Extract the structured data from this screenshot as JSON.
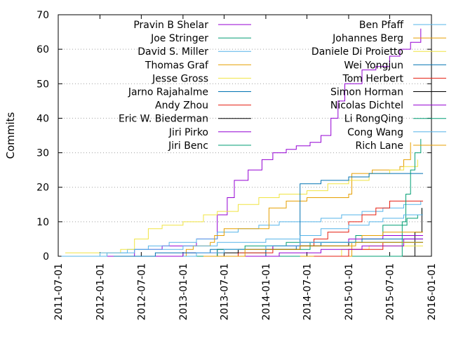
{
  "chart_data": {
    "type": "line",
    "title": "",
    "xlabel": "",
    "ylabel": "Commits",
    "xlim": [
      "2011-07-01",
      "2016-01-01"
    ],
    "ylim": [
      0,
      70
    ],
    "y_ticks": [
      0,
      10,
      20,
      30,
      40,
      50,
      60,
      70
    ],
    "x_ticks": [
      "2011-07-01",
      "2012-01-01",
      "2012-07-01",
      "2013-01-01",
      "2013-07-01",
      "2014-01-01",
      "2014-07-01",
      "2015-01-01",
      "2015-07-01",
      "2016-01-01"
    ],
    "grid": "horizontal dotted",
    "legend_placement": "top, two columns",
    "series": [
      {
        "name": "Pravin B Shelar",
        "color": "#9400d3",
        "points": [
          [
            "2012-01-15",
            0
          ],
          [
            "2012-06-01",
            2
          ],
          [
            "2012-10-01",
            3
          ],
          [
            "2013-03-01",
            5
          ],
          [
            "2013-06-01",
            12
          ],
          [
            "2013-07-15",
            17
          ],
          [
            "2013-08-15",
            22
          ],
          [
            "2013-10-15",
            25
          ],
          [
            "2013-12-15",
            28
          ],
          [
            "2014-02-01",
            30
          ],
          [
            "2014-04-01",
            31
          ],
          [
            "2014-05-15",
            32
          ],
          [
            "2014-07-15",
            33
          ],
          [
            "2014-09-01",
            35
          ],
          [
            "2014-10-15",
            40
          ],
          [
            "2014-11-15",
            45
          ],
          [
            "2014-12-15",
            50
          ],
          [
            "2015-03-01",
            54
          ],
          [
            "2015-05-01",
            55
          ],
          [
            "2015-07-01",
            58
          ],
          [
            "2015-08-15",
            60
          ],
          [
            "2015-10-01",
            62
          ],
          [
            "2015-11-15",
            66
          ]
        ]
      },
      {
        "name": "Joe Stringer",
        "color": "#009e73",
        "points": [
          [
            "2013-05-01",
            0
          ],
          [
            "2013-09-01",
            1
          ],
          [
            "2014-01-01",
            2
          ],
          [
            "2014-07-15",
            4
          ],
          [
            "2015-02-01",
            6
          ],
          [
            "2015-06-01",
            9
          ],
          [
            "2015-09-15",
            11
          ],
          [
            "2015-11-01",
            12
          ],
          [
            "2015-11-20",
            14
          ]
        ]
      },
      {
        "name": "David S. Miller",
        "color": "#56b4e9",
        "points": [
          [
            "2012-01-01",
            0
          ],
          [
            "2012-02-01",
            1
          ],
          [
            "2012-05-01",
            2
          ],
          [
            "2012-08-01",
            3
          ],
          [
            "2012-11-01",
            4
          ],
          [
            "2013-03-01",
            5
          ],
          [
            "2013-06-01",
            7
          ],
          [
            "2013-09-01",
            8
          ],
          [
            "2013-12-01",
            9
          ],
          [
            "2014-03-01",
            10
          ],
          [
            "2014-06-01",
            10
          ],
          [
            "2014-09-01",
            11
          ],
          [
            "2014-12-01",
            12
          ],
          [
            "2015-03-01",
            13
          ],
          [
            "2015-06-01",
            14
          ],
          [
            "2015-09-01",
            15
          ],
          [
            "2015-11-15",
            16
          ]
        ]
      },
      {
        "name": "Thomas Graf",
        "color": "#e69f00",
        "points": [
          [
            "2012-10-01",
            0
          ],
          [
            "2013-01-15",
            2
          ],
          [
            "2013-02-15",
            3
          ],
          [
            "2013-05-01",
            4
          ],
          [
            "2013-05-20",
            6
          ],
          [
            "2013-07-01",
            8
          ],
          [
            "2013-12-15",
            8
          ],
          [
            "2014-01-15",
            14
          ],
          [
            "2014-04-01",
            16
          ],
          [
            "2014-07-01",
            17
          ],
          [
            "2014-10-01",
            17
          ],
          [
            "2015-01-01",
            18
          ],
          [
            "2015-01-15",
            24
          ],
          [
            "2015-04-15",
            25
          ],
          [
            "2015-08-15",
            26
          ],
          [
            "2015-09-01",
            28
          ],
          [
            "2015-10-01",
            33
          ]
        ]
      },
      {
        "name": "Jesse Gross",
        "color": "#f0e442",
        "points": [
          [
            "2011-08-01",
            1
          ],
          [
            "2012-04-01",
            2
          ],
          [
            "2012-06-01",
            5
          ],
          [
            "2012-08-01",
            8
          ],
          [
            "2012-10-01",
            9
          ],
          [
            "2013-01-01",
            10
          ],
          [
            "2013-04-01",
            12
          ],
          [
            "2013-06-01",
            13
          ],
          [
            "2013-09-01",
            15
          ],
          [
            "2013-12-01",
            17
          ],
          [
            "2014-03-01",
            18
          ],
          [
            "2014-07-01",
            19
          ],
          [
            "2014-10-01",
            21
          ],
          [
            "2015-01-01",
            22
          ],
          [
            "2015-04-01",
            24
          ],
          [
            "2015-07-01",
            25
          ],
          [
            "2015-09-01",
            26
          ],
          [
            "2015-11-01",
            28
          ]
        ]
      },
      {
        "name": "Jarno Rajahalme",
        "color": "#0072b2",
        "points": [
          [
            "2013-09-01",
            0
          ],
          [
            "2014-01-01",
            2
          ],
          [
            "2014-05-15",
            3
          ],
          [
            "2014-06-01",
            21
          ],
          [
            "2014-09-01",
            22
          ],
          [
            "2015-01-01",
            23
          ],
          [
            "2015-04-01",
            24
          ],
          [
            "2015-11-25",
            24
          ]
        ]
      },
      {
        "name": "Andy Zhou",
        "color": "#e51e10",
        "points": [
          [
            "2013-06-01",
            0
          ],
          [
            "2013-09-01",
            1
          ],
          [
            "2014-02-01",
            3
          ],
          [
            "2014-08-01",
            5
          ],
          [
            "2014-10-01",
            7
          ],
          [
            "2015-01-01",
            10
          ],
          [
            "2015-03-01",
            12
          ],
          [
            "2015-05-01",
            14
          ],
          [
            "2015-07-01",
            16
          ],
          [
            "2015-11-25",
            16
          ]
        ]
      },
      {
        "name": "Eric W. Biederman",
        "color": "#000000",
        "points": [
          [
            "2013-09-01",
            0
          ],
          [
            "2015-10-15",
            0
          ],
          [
            "2015-10-20",
            7
          ],
          [
            "2015-11-20",
            14
          ]
        ]
      },
      {
        "name": "Jiri Pirko",
        "color": "#9400d3",
        "points": [
          [
            "2012-05-01",
            0
          ],
          [
            "2013-01-01",
            1
          ],
          [
            "2013-06-01",
            2
          ],
          [
            "2014-02-01",
            3
          ],
          [
            "2014-06-01",
            4
          ],
          [
            "2015-01-01",
            5
          ],
          [
            "2015-06-01",
            6
          ],
          [
            "2015-11-25",
            6
          ]
        ]
      },
      {
        "name": "Jiri Benc",
        "color": "#009e73",
        "points": [
          [
            "2013-12-01",
            0
          ],
          [
            "2015-08-15",
            0
          ],
          [
            "2015-08-25",
            10
          ],
          [
            "2015-09-10",
            18
          ],
          [
            "2015-10-01",
            25
          ],
          [
            "2015-10-20",
            30
          ],
          [
            "2015-11-15",
            34
          ]
        ]
      },
      {
        "name": "Ben Pfaff",
        "color": "#56b4e9",
        "points": [
          [
            "2011-07-15",
            0
          ],
          [
            "2012-01-01",
            1
          ],
          [
            "2012-06-01",
            2
          ],
          [
            "2013-01-01",
            3
          ],
          [
            "2013-06-01",
            4
          ],
          [
            "2014-01-01",
            5
          ],
          [
            "2014-06-01",
            6
          ],
          [
            "2014-09-01",
            8
          ],
          [
            "2015-01-01",
            9
          ],
          [
            "2015-04-01",
            10
          ],
          [
            "2015-06-01",
            11
          ],
          [
            "2015-09-01",
            12
          ],
          [
            "2015-11-25",
            12
          ]
        ]
      },
      {
        "name": "Johannes Berg",
        "color": "#e69f00",
        "points": [
          [
            "2014-06-01",
            0
          ],
          [
            "2015-01-15",
            4
          ],
          [
            "2015-03-01",
            6
          ],
          [
            "2015-06-01",
            7
          ],
          [
            "2015-11-25",
            7
          ]
        ]
      },
      {
        "name": "Daniele Di Proietto",
        "color": "#f0e442",
        "points": [
          [
            "2014-08-01",
            0
          ],
          [
            "2014-12-01",
            2
          ],
          [
            "2015-04-01",
            3
          ],
          [
            "2015-11-25",
            3
          ]
        ]
      },
      {
        "name": "Wei Yongjun",
        "color": "#0072b2",
        "points": [
          [
            "2012-03-01",
            0
          ],
          [
            "2012-09-01",
            1
          ],
          [
            "2013-05-01",
            2
          ],
          [
            "2014-01-01",
            3
          ],
          [
            "2014-09-01",
            4
          ],
          [
            "2015-03-01",
            5
          ],
          [
            "2015-11-25",
            5
          ]
        ]
      },
      {
        "name": "Tom Herbert",
        "color": "#e51e10",
        "points": [
          [
            "2014-08-01",
            0
          ],
          [
            "2015-01-01",
            2
          ],
          [
            "2015-06-01",
            4
          ],
          [
            "2015-11-25",
            4
          ]
        ]
      },
      {
        "name": "Simon Horman",
        "color": "#000000",
        "points": [
          [
            "2013-01-01",
            0
          ],
          [
            "2013-06-01",
            1
          ],
          [
            "2013-09-01",
            2
          ],
          [
            "2014-01-01",
            2
          ],
          [
            "2014-06-01",
            3
          ],
          [
            "2015-01-01",
            4
          ],
          [
            "2015-11-25",
            4
          ]
        ]
      },
      {
        "name": "Nicolas Dichtel",
        "color": "#9400d3",
        "points": [
          [
            "2013-09-01",
            0
          ],
          [
            "2014-03-01",
            1
          ],
          [
            "2014-09-01",
            2
          ],
          [
            "2015-03-01",
            3
          ],
          [
            "2015-09-01",
            5
          ],
          [
            "2015-11-25",
            5
          ]
        ]
      },
      {
        "name": "Li RongQing",
        "color": "#009e73",
        "points": [
          [
            "2013-03-01",
            0
          ],
          [
            "2013-06-01",
            2
          ],
          [
            "2013-10-01",
            3
          ],
          [
            "2014-04-01",
            4
          ],
          [
            "2015-11-25",
            4
          ]
        ]
      },
      {
        "name": "Cong Wang",
        "color": "#56b4e9",
        "points": [
          [
            "2013-01-01",
            0
          ],
          [
            "2013-03-01",
            1
          ],
          [
            "2013-07-01",
            2
          ],
          [
            "2014-01-01",
            3
          ],
          [
            "2014-06-01",
            4
          ],
          [
            "2015-11-25",
            4
          ]
        ]
      },
      {
        "name": "Rich Lane",
        "color": "#e69f00",
        "points": [
          [
            "2013-04-01",
            0
          ],
          [
            "2013-10-01",
            2
          ],
          [
            "2014-06-01",
            3
          ],
          [
            "2015-02-01",
            4
          ],
          [
            "2015-11-25",
            4
          ]
        ]
      }
    ]
  }
}
